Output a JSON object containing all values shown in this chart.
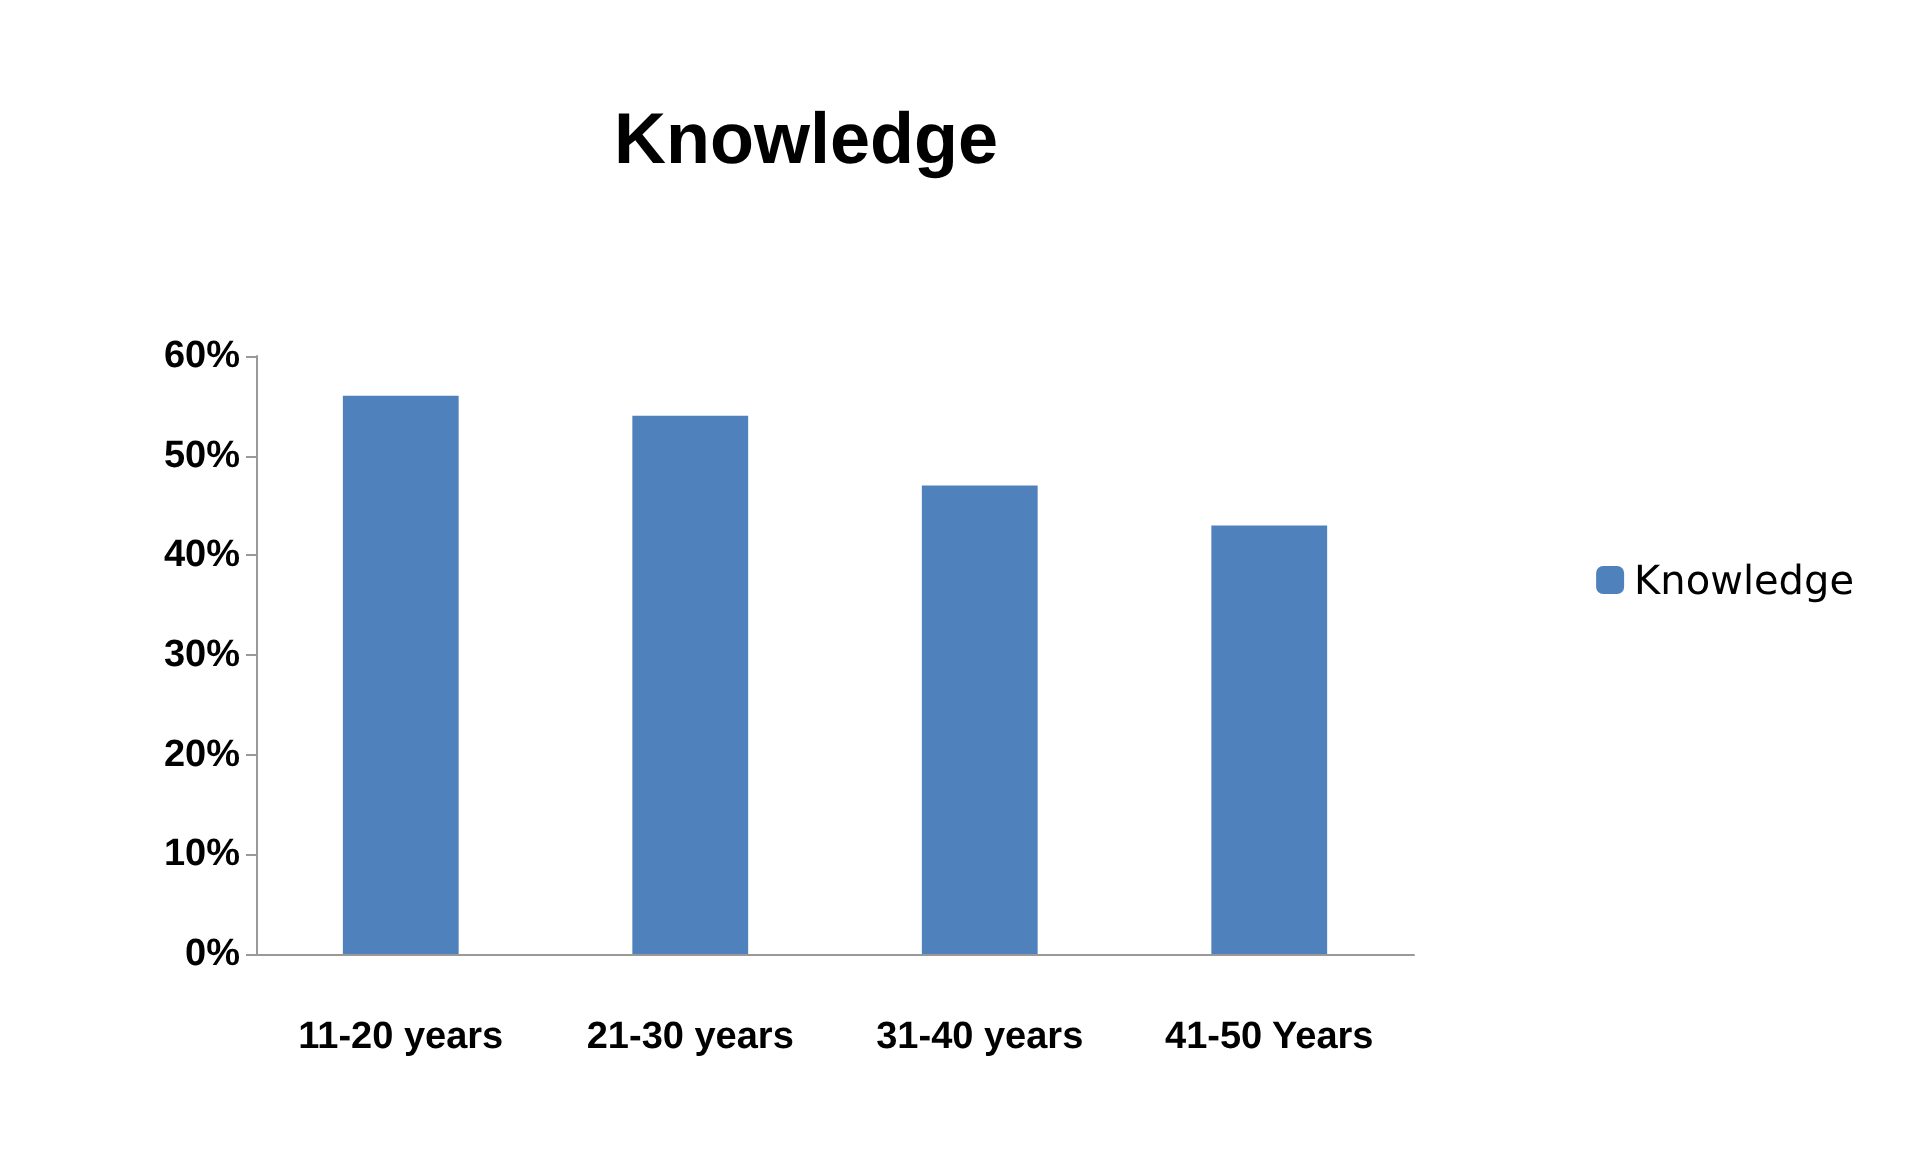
{
  "chart_data": {
    "type": "bar",
    "title": "Knowledge",
    "categories": [
      "11-20 years",
      "21-30 years",
      "31-40 years",
      "41-50 Years"
    ],
    "series": [
      {
        "name": "Knowledge",
        "color": "#4f81bd",
        "values": [
          56,
          54,
          47,
          43
        ]
      }
    ],
    "ylim": [
      0,
      60
    ],
    "yticks": [
      {
        "value": 0,
        "label": "0%"
      },
      {
        "value": 10,
        "label": "10%"
      },
      {
        "value": 20,
        "label": "20%"
      },
      {
        "value": 30,
        "label": "30%"
      },
      {
        "value": 40,
        "label": "40%"
      },
      {
        "value": 50,
        "label": "50%"
      },
      {
        "value": 60,
        "label": "60%"
      }
    ],
    "grid": false,
    "legend": "right"
  }
}
